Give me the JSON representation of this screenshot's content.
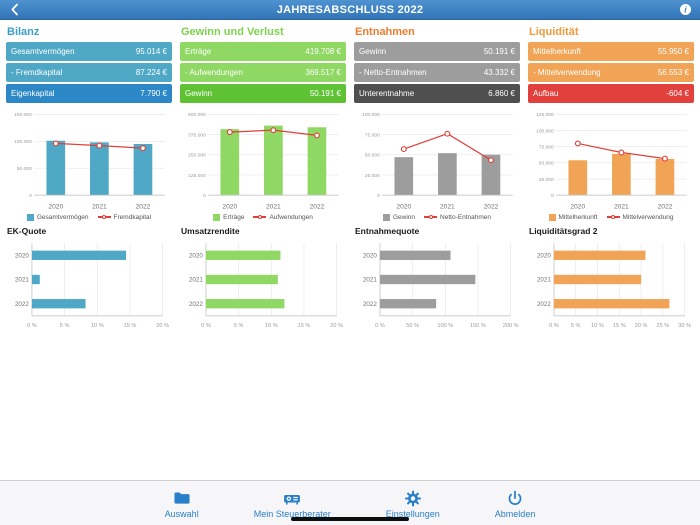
{
  "nav": {
    "title": "JAHRESABSCHLUSS 2022"
  },
  "columns": [
    {
      "title": "Bilanz",
      "accent": "#3a9fc6",
      "rows": [
        {
          "label": "Gesamtvermögen",
          "value": "95.014 €",
          "bg": "#4fa8c5"
        },
        {
          "label": "- Fremdkapital",
          "value": "87.224 €",
          "bg": "#4fa8c5"
        },
        {
          "label": "Eigenkapital",
          "value": "7.790 €",
          "bg": "#2b87c5"
        }
      ],
      "legend": [
        {
          "label": "Gesamtvermögen",
          "color": "#4fa8c5",
          "type": "bar"
        },
        {
          "label": "Fremdkapital",
          "color": "#e0403a",
          "type": "line"
        }
      ],
      "sub_title": "EK-Quote"
    },
    {
      "title": "Gewinn und Verlust",
      "accent": "#7ed24d",
      "rows": [
        {
          "label": "Erträge",
          "value": "419.708 €",
          "bg": "#8fd863"
        },
        {
          "label": "- Aufwendungen",
          "value": "369.517 €",
          "bg": "#8fd863"
        },
        {
          "label": "Gewinn",
          "value": "50.191 €",
          "bg": "#5fc235"
        }
      ],
      "legend": [
        {
          "label": "Erträge",
          "color": "#8fd863",
          "type": "bar"
        },
        {
          "label": "Aufwendungen",
          "color": "#e0403a",
          "type": "line"
        }
      ],
      "sub_title": "Umsatzrendite"
    },
    {
      "title": "Entnahmen",
      "accent": "#ee7d2e",
      "rows": [
        {
          "label": "Gewinn",
          "value": "50.191 €",
          "bg": "#9d9d9d"
        },
        {
          "label": "- Netto-Entnahmen",
          "value": "43.332 €",
          "bg": "#9d9d9d"
        },
        {
          "label": "Unterentnahme",
          "value": "6.860 €",
          "bg": "#4f4f4f"
        }
      ],
      "legend": [
        {
          "label": "Gewinn",
          "color": "#9d9d9d",
          "type": "bar"
        },
        {
          "label": "Netto-Entnahmen",
          "color": "#e0403a",
          "type": "line"
        }
      ],
      "sub_title": "Entnahmequote"
    },
    {
      "title": "Liquidität",
      "accent": "#f19b3c",
      "rows": [
        {
          "label": "Mittelherkunft",
          "value": "55.950 €",
          "bg": "#f2a456"
        },
        {
          "label": "- Mittelverwendung",
          "value": "56.553 €",
          "bg": "#f2a456"
        },
        {
          "label": "Aufbau",
          "value": "-604 €",
          "bg": "#e2403c"
        }
      ],
      "legend": [
        {
          "label": "Mittelherkunft",
          "color": "#f2a456",
          "type": "bar"
        },
        {
          "label": "Mittelverwendung",
          "color": "#e0403a",
          "type": "line"
        }
      ],
      "sub_title": "Liquiditätsgrad 2"
    }
  ],
  "chart_data": [
    {
      "id": "bilanz_combo",
      "type": "bar+line",
      "categories": [
        "2020",
        "2021",
        "2022"
      ],
      "series": [
        {
          "name": "Gesamtvermögen",
          "type": "bar",
          "color": "#4fa8c5",
          "values": [
            101000,
            98000,
            95014
          ]
        },
        {
          "name": "Fremdkapital",
          "type": "line",
          "color": "#e0403a",
          "values": [
            96000,
            92000,
            87224
          ]
        }
      ],
      "ylim": [
        0,
        150000
      ],
      "yticks": [
        0,
        50000,
        100000,
        150000
      ]
    },
    {
      "id": "guv_combo",
      "type": "bar+line",
      "categories": [
        "2020",
        "2021",
        "2022"
      ],
      "series": [
        {
          "name": "Erträge",
          "type": "bar",
          "color": "#8fd863",
          "values": [
            408000,
            430000,
            419708
          ]
        },
        {
          "name": "Aufwendungen",
          "type": "line",
          "color": "#e0403a",
          "values": [
            390000,
            402000,
            369517
          ]
        }
      ],
      "ylim": [
        0,
        500000
      ],
      "yticks": [
        0,
        125000,
        250000,
        375000,
        500000
      ]
    },
    {
      "id": "entnahmen_combo",
      "type": "bar+line",
      "categories": [
        "2020",
        "2021",
        "2022"
      ],
      "series": [
        {
          "name": "Gewinn",
          "type": "bar",
          "color": "#9d9d9d",
          "values": [
            47000,
            52000,
            50191
          ]
        },
        {
          "name": "Netto-Entnahmen",
          "type": "line",
          "color": "#e0403a",
          "values": [
            57000,
            76000,
            43332
          ]
        }
      ],
      "ylim": [
        0,
        100000
      ],
      "yticks": [
        0,
        25000,
        50000,
        75000,
        100000
      ]
    },
    {
      "id": "liquiditaet_combo",
      "type": "bar+line",
      "categories": [
        "2020",
        "2021",
        "2022"
      ],
      "series": [
        {
          "name": "Mittelherkunft",
          "type": "bar",
          "color": "#f2a456",
          "values": [
            54000,
            64000,
            55950
          ]
        },
        {
          "name": "Mittelverwendung",
          "type": "line",
          "color": "#e0403a",
          "values": [
            80000,
            66000,
            56553
          ]
        }
      ],
      "ylim": [
        0,
        125000
      ],
      "yticks": [
        0,
        25000,
        50000,
        75000,
        100000,
        125000
      ]
    },
    {
      "id": "ek_quote",
      "type": "hbar",
      "title": "EK-Quote",
      "categories": [
        "2020",
        "2021",
        "2022"
      ],
      "values": [
        14.4,
        1.2,
        8.2
      ],
      "color": "#4fa8c5",
      "xlim": [
        0,
        20
      ],
      "xticks": [
        0,
        5,
        10,
        15,
        20
      ],
      "xtick_labels": [
        "0 %",
        "5 %",
        "10 %",
        "15 %",
        "20 %"
      ]
    },
    {
      "id": "umsatzrendite",
      "type": "hbar",
      "title": "Umsatzrendite",
      "categories": [
        "2020",
        "2021",
        "2022"
      ],
      "values": [
        11.4,
        11.0,
        12.0
      ],
      "color": "#8fd863",
      "xlim": [
        0,
        20
      ],
      "xticks": [
        0,
        5,
        10,
        15,
        20
      ],
      "xtick_labels": [
        "0 %",
        "5 %",
        "10 %",
        "15 %",
        "20 %"
      ]
    },
    {
      "id": "entnahmequote",
      "type": "hbar",
      "title": "Entnahmequote",
      "categories": [
        "2020",
        "2021",
        "2022"
      ],
      "values": [
        108,
        146,
        86
      ],
      "color": "#9d9d9d",
      "xlim": [
        0,
        200
      ],
      "xticks": [
        0,
        50,
        100,
        150,
        200
      ],
      "xtick_labels": [
        "0 %",
        "50 %",
        "100 %",
        "150 %",
        "200 %"
      ]
    },
    {
      "id": "liquiditaetsgrad2",
      "type": "hbar",
      "title": "Liquiditätsgrad 2",
      "categories": [
        "2020",
        "2021",
        "2022"
      ],
      "values": [
        21,
        20,
        26.5
      ],
      "color": "#f2a456",
      "xlim": [
        0,
        30
      ],
      "xticks": [
        0,
        5,
        10,
        15,
        20,
        25,
        30
      ],
      "xtick_labels": [
        "0 %",
        "5 %",
        "10 %",
        "15 %",
        "20 %",
        "25 %",
        "30 %"
      ]
    }
  ],
  "tabbar": {
    "items": [
      {
        "label": "Auswahl",
        "icon": "folder-icon"
      },
      {
        "label": "Mein Steuerberater",
        "icon": "projector-icon"
      },
      {
        "label": "Einstellungen",
        "icon": "gear-icon"
      },
      {
        "label": "Abmelden",
        "icon": "power-icon"
      }
    ]
  }
}
